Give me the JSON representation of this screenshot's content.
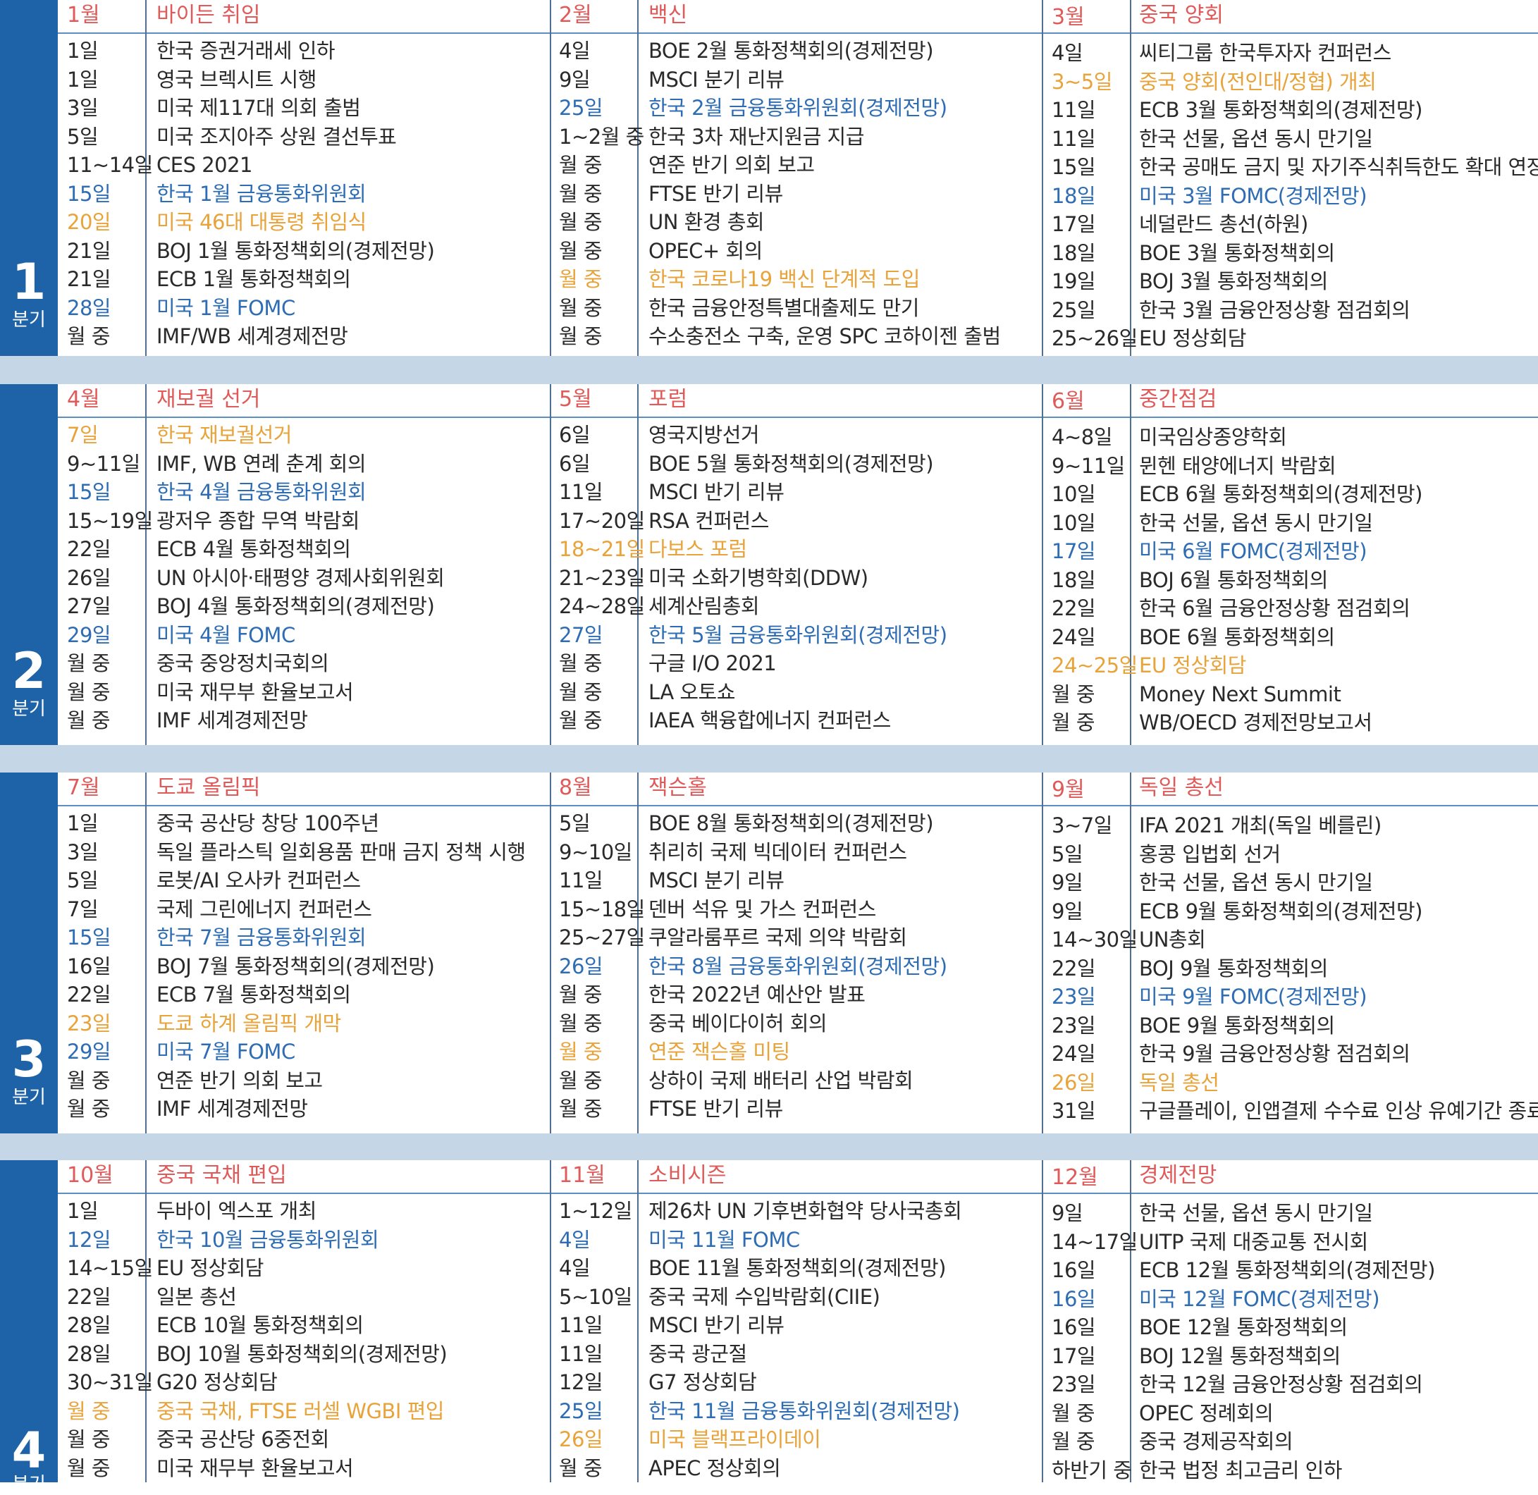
{
  "quarters": [
    {
      "number": "1",
      "label": "분기",
      "months": [
        {
          "month": "1월",
          "theme": "바이든 취임",
          "events": [
            {
              "day": "1일",
              "text": "한국 증권거래세 인하",
              "style": "normal"
            },
            {
              "day": "1일",
              "text": "영국 브렉시트 시행",
              "style": "normal"
            },
            {
              "day": "3일",
              "text": "미국 제117대 의회 출범",
              "style": "normal"
            },
            {
              "day": "5일",
              "text": "미국 조지아주 상원 결선투표",
              "style": "normal"
            },
            {
              "day": "11~14일",
              "text": "CES 2021",
              "style": "normal"
            },
            {
              "day": "15일",
              "text": "한국 1월 금융통화위원회",
              "style": "blue"
            },
            {
              "day": "20일",
              "text": "미국 46대 대통령 취임식",
              "style": "orange"
            },
            {
              "day": "21일",
              "text": "BOJ 1월 통화정책회의(경제전망)",
              "style": "normal"
            },
            {
              "day": "21일",
              "text": "ECB 1월 통화정책회의",
              "style": "normal"
            },
            {
              "day": "28일",
              "text": "미국 1월 FOMC",
              "style": "blue"
            },
            {
              "day": "월 중",
              "text": "IMF/WB 세계경제전망",
              "style": "normal"
            }
          ]
        },
        {
          "month": "2월",
          "theme": "백신",
          "events": [
            {
              "day": "4일",
              "text": "BOE 2월 통화정책회의(경제전망)",
              "style": "normal"
            },
            {
              "day": "9일",
              "text": "MSCI 분기 리뷰",
              "style": "normal"
            },
            {
              "day": "25일",
              "text": "한국 2월 금융통화위원회(경제전망)",
              "style": "blue"
            },
            {
              "day": "1~2월 중",
              "text": "한국 3차 재난지원금 지급",
              "style": "normal"
            },
            {
              "day": "월 중",
              "text": "연준 반기 의회 보고",
              "style": "normal"
            },
            {
              "day": "월 중",
              "text": "FTSE 반기 리뷰",
              "style": "normal"
            },
            {
              "day": "월 중",
              "text": "UN 환경 총회",
              "style": "normal"
            },
            {
              "day": "월 중",
              "text": "OPEC+ 회의",
              "style": "normal"
            },
            {
              "day": "월 중",
              "text": "한국 코로나19 백신 단계적 도입",
              "style": "orange"
            },
            {
              "day": "월 중",
              "text": "한국 금융안정특별대출제도 만기",
              "style": "normal"
            },
            {
              "day": "월 중",
              "text": "수소충전소 구축, 운영 SPC 코하이젠 출범",
              "style": "normal"
            }
          ]
        },
        {
          "month": "3월",
          "theme": "중국 양회",
          "events": [
            {
              "day": "4일",
              "text": "씨티그룹 한국투자자 컨퍼런스",
              "style": "normal"
            },
            {
              "day": "3~5일",
              "text": "중국 양회(전인대/정협) 개최",
              "style": "orange"
            },
            {
              "day": "11일",
              "text": "ECB 3월 통화정책회의(경제전망)",
              "style": "normal"
            },
            {
              "day": "11일",
              "text": "한국 선물, 옵션 동시 만기일",
              "style": "normal"
            },
            {
              "day": "15일",
              "text": "한국 공매도 금지 및 자기주식취득한도 확대 연장 종료",
              "style": "normal"
            },
            {
              "day": "18일",
              "text": "미국 3월 FOMC(경제전망)",
              "style": "blue"
            },
            {
              "day": "17일",
              "text": "네덜란드 총선(하원)",
              "style": "normal"
            },
            {
              "day": "18일",
              "text": "BOE 3월 통화정책회의",
              "style": "normal"
            },
            {
              "day": "19일",
              "text": "BOJ 3월 통화정책회의",
              "style": "normal"
            },
            {
              "day": "25일",
              "text": "한국 3월 금융안정상황 점검회의",
              "style": "normal"
            },
            {
              "day": "25~26일",
              "text": "EU 정상회담",
              "style": "normal"
            }
          ]
        }
      ]
    },
    {
      "number": "2",
      "label": "분기",
      "months": [
        {
          "month": "4월",
          "theme": "재보궐 선거",
          "events": [
            {
              "day": "7일",
              "text": "한국 재보궐선거",
              "style": "orange"
            },
            {
              "day": "9~11일",
              "text": "IMF, WB 연례 춘계 회의",
              "style": "normal"
            },
            {
              "day": "15일",
              "text": "한국 4월 금융통화위원회",
              "style": "blue"
            },
            {
              "day": "15~19일",
              "text": "광저우 종합 무역 박람회",
              "style": "normal"
            },
            {
              "day": "22일",
              "text": "ECB 4월 통화정책회의",
              "style": "normal"
            },
            {
              "day": "26일",
              "text": "UN 아시아·태평양 경제사회위원회",
              "style": "normal"
            },
            {
              "day": "27일",
              "text": "BOJ 4월 통화정책회의(경제전망)",
              "style": "normal"
            },
            {
              "day": "29일",
              "text": "미국 4월 FOMC",
              "style": "blue"
            },
            {
              "day": "월 중",
              "text": "중국 중앙정치국회의",
              "style": "normal"
            },
            {
              "day": "월 중",
              "text": "미국 재무부 환율보고서",
              "style": "normal"
            },
            {
              "day": "월 중",
              "text": "IMF 세계경제전망",
              "style": "normal"
            }
          ]
        },
        {
          "month": "5월",
          "theme": "포럼",
          "events": [
            {
              "day": "6일",
              "text": "영국지방선거",
              "style": "normal"
            },
            {
              "day": "6일",
              "text": "BOE 5월 통화정책회의(경제전망)",
              "style": "normal"
            },
            {
              "day": "11일",
              "text": "MSCI 반기 리뷰",
              "style": "normal"
            },
            {
              "day": "17~20일",
              "text": "RSA 컨퍼런스",
              "style": "normal"
            },
            {
              "day": "18~21일",
              "text": "다보스 포럼",
              "style": "orange"
            },
            {
              "day": "21~23일",
              "text": "미국 소화기병학회(DDW)",
              "style": "normal"
            },
            {
              "day": "24~28일",
              "text": "세계산림총회",
              "style": "normal"
            },
            {
              "day": "27일",
              "text": "한국 5월 금융통화위원회(경제전망)",
              "style": "blue"
            },
            {
              "day": "월 중",
              "text": "구글 I/O 2021",
              "style": "normal"
            },
            {
              "day": "월 중",
              "text": "LA 오토쇼",
              "style": "normal"
            },
            {
              "day": "월 중",
              "text": "IAEA 핵융합에너지 컨퍼런스",
              "style": "normal"
            }
          ]
        },
        {
          "month": "6월",
          "theme": "중간점검",
          "events": [
            {
              "day": "4~8일",
              "text": "미국임상종양학회",
              "style": "normal"
            },
            {
              "day": "9~11일",
              "text": "뮌헨 태양에너지 박람회",
              "style": "normal"
            },
            {
              "day": "10일",
              "text": "ECB 6월 통화정책회의(경제전망)",
              "style": "normal"
            },
            {
              "day": "10일",
              "text": "한국 선물, 옵션 동시 만기일",
              "style": "normal"
            },
            {
              "day": "17일",
              "text": "미국 6월 FOMC(경제전망)",
              "style": "blue"
            },
            {
              "day": "18일",
              "text": "BOJ 6월 통화정책회의",
              "style": "normal"
            },
            {
              "day": "22일",
              "text": "한국 6월 금융안정상황 점검회의",
              "style": "normal"
            },
            {
              "day": "24일",
              "text": "BOE 6월 통화정책회의",
              "style": "normal"
            },
            {
              "day": "24~25일",
              "text": "EU 정상회담",
              "style": "orange"
            },
            {
              "day": "월 중",
              "text": "Money Next Summit",
              "style": "normal"
            },
            {
              "day": "월 중",
              "text": "WB/OECD 경제전망보고서",
              "style": "normal"
            }
          ]
        }
      ]
    },
    {
      "number": "3",
      "label": "분기",
      "months": [
        {
          "month": "7월",
          "theme": "도쿄 올림픽",
          "events": [
            {
              "day": "1일",
              "text": "중국 공산당 창당 100주년",
              "style": "normal"
            },
            {
              "day": "3일",
              "text": "독일 플라스틱 일회용품 판매 금지 정책 시행",
              "style": "normal"
            },
            {
              "day": "5일",
              "text": "로봇/AI 오사카 컨퍼런스",
              "style": "normal"
            },
            {
              "day": "7일",
              "text": "국제 그린에너지 컨퍼런스",
              "style": "normal"
            },
            {
              "day": "15일",
              "text": "한국 7월 금융통화위원회",
              "style": "blue"
            },
            {
              "day": "16일",
              "text": "BOJ 7월 통화정책회의(경제전망)",
              "style": "normal"
            },
            {
              "day": "22일",
              "text": "ECB 7월 통화정책회의",
              "style": "normal"
            },
            {
              "day": "23일",
              "text": "도쿄 하계 올림픽 개막",
              "style": "orange"
            },
            {
              "day": "29일",
              "text": "미국 7월 FOMC",
              "style": "blue"
            },
            {
              "day": "월 중",
              "text": "연준 반기 의회 보고",
              "style": "normal"
            },
            {
              "day": "월 중",
              "text": "IMF 세계경제전망",
              "style": "normal"
            }
          ]
        },
        {
          "month": "8월",
          "theme": "잭슨홀",
          "events": [
            {
              "day": "5일",
              "text": "BOE 8월 통화정책회의(경제전망)",
              "style": "normal"
            },
            {
              "day": "9~10일",
              "text": "취리히 국제 빅데이터 컨퍼런스",
              "style": "normal"
            },
            {
              "day": "11일",
              "text": "MSCI 분기 리뷰",
              "style": "normal"
            },
            {
              "day": "15~18일",
              "text": "덴버 석유 및 가스 컨퍼런스",
              "style": "normal"
            },
            {
              "day": "25~27일",
              "text": "쿠알라룸푸르 국제 의약 박람회",
              "style": "normal"
            },
            {
              "day": "26일",
              "text": "한국 8월 금융통화위원회(경제전망)",
              "style": "blue"
            },
            {
              "day": "월 중",
              "text": "한국 2022년 예산안 발표",
              "style": "normal"
            },
            {
              "day": "월 중",
              "text": "중국 베이다이허 회의",
              "style": "normal"
            },
            {
              "day": "월 중",
              "text": "연준 잭슨홀 미팅",
              "style": "orange"
            },
            {
              "day": "월 중",
              "text": "상하이 국제 배터리 산업 박람회",
              "style": "normal"
            },
            {
              "day": "월 중",
              "text": "FTSE 반기 리뷰",
              "style": "normal"
            }
          ]
        },
        {
          "month": "9월",
          "theme": "독일 총선",
          "events": [
            {
              "day": "3~7일",
              "text": "IFA 2021 개최(독일 베를린)",
              "style": "normal"
            },
            {
              "day": "5일",
              "text": "홍콩 입법회 선거",
              "style": "normal"
            },
            {
              "day": "9일",
              "text": "한국 선물, 옵션 동시 만기일",
              "style": "normal"
            },
            {
              "day": "9일",
              "text": "ECB 9월 통화정책회의(경제전망)",
              "style": "normal"
            },
            {
              "day": "14~30일",
              "text": "UN총회",
              "style": "normal"
            },
            {
              "day": "22일",
              "text": "BOJ 9월 통화정책회의",
              "style": "normal"
            },
            {
              "day": "23일",
              "text": "미국 9월 FOMC(경제전망)",
              "style": "blue"
            },
            {
              "day": "23일",
              "text": "BOE 9월 통화정책회의",
              "style": "normal"
            },
            {
              "day": "24일",
              "text": "한국 9월 금융안정상황 점검회의",
              "style": "normal"
            },
            {
              "day": "26일",
              "text": "독일 총선",
              "style": "orange"
            },
            {
              "day": "31일",
              "text": "구글플레이, 인앱결제 수수료 인상 유예기간 종료",
              "style": "normal"
            }
          ]
        }
      ]
    },
    {
      "number": "4",
      "label": "분기",
      "months": [
        {
          "month": "10월",
          "theme": "중국 국채 편입",
          "events": [
            {
              "day": "1일",
              "text": "두바이 엑스포 개최",
              "style": "normal"
            },
            {
              "day": "12일",
              "text": "한국 10월 금융통화위원회",
              "style": "blue"
            },
            {
              "day": "14~15일",
              "text": "EU 정상회담",
              "style": "normal"
            },
            {
              "day": "22일",
              "text": "일본 총선",
              "style": "normal"
            },
            {
              "day": "28일",
              "text": "ECB 10월 통화정책회의",
              "style": "normal"
            },
            {
              "day": "28일",
              "text": "BOJ 10월 통화정책회의(경제전망)",
              "style": "normal"
            },
            {
              "day": "30~31일",
              "text": "G20 정상회담",
              "style": "normal"
            },
            {
              "day": "월 중",
              "text": "중국 국채, FTSE 러셀 WGBI 편입",
              "style": "orange"
            },
            {
              "day": "월 중",
              "text": "중국 공산당 6중전회",
              "style": "normal"
            },
            {
              "day": "월 중",
              "text": "미국 재무부 환율보고서",
              "style": "normal"
            }
          ]
        },
        {
          "month": "11월",
          "theme": "소비시즌",
          "events": [
            {
              "day": "1~12일",
              "text": "제26차 UN 기후변화협약 당사국총회",
              "style": "normal"
            },
            {
              "day": "4일",
              "text": "미국 11월 FOMC",
              "style": "blue"
            },
            {
              "day": "4일",
              "text": "BOE 11월 통화정책회의(경제전망)",
              "style": "normal"
            },
            {
              "day": "5~10일",
              "text": "중국 국제 수입박람회(CIIE)",
              "style": "normal"
            },
            {
              "day": "11일",
              "text": "MSCI 반기 리뷰",
              "style": "normal"
            },
            {
              "day": "11일",
              "text": "중국 광군절",
              "style": "normal"
            },
            {
              "day": "12일",
              "text": "G7 정상회담",
              "style": "normal"
            },
            {
              "day": "25일",
              "text": "한국 11월 금융통화위원회(경제전망)",
              "style": "blue"
            },
            {
              "day": "26일",
              "text": "미국 블랙프라이데이",
              "style": "orange"
            },
            {
              "day": "월 중",
              "text": "APEC 정상회의",
              "style": "normal"
            }
          ]
        },
        {
          "month": "12월",
          "theme": "경제전망",
          "events": [
            {
              "day": "9일",
              "text": "한국 선물, 옵션 동시 만기일",
              "style": "normal"
            },
            {
              "day": "14~17일",
              "text": "UITP 국제 대중교통 전시회",
              "style": "normal"
            },
            {
              "day": "16일",
              "text": "ECB 12월 통화정책회의(경제전망)",
              "style": "normal"
            },
            {
              "day": "16일",
              "text": "미국 12월 FOMC(경제전망)",
              "style": "blue"
            },
            {
              "day": "16일",
              "text": "BOE 12월 통화정책회의",
              "style": "normal"
            },
            {
              "day": "17일",
              "text": "BOJ 12월 통화정책회의",
              "style": "normal"
            },
            {
              "day": "23일",
              "text": "한국 12월 금융안정상황 점검회의",
              "style": "normal"
            },
            {
              "day": "월 중",
              "text": "OPEC 정례회의",
              "style": "normal"
            },
            {
              "day": "월 중",
              "text": "중국 경제공작회의",
              "style": "normal"
            },
            {
              "day": "하반기 중",
              "text": "한국 법정 최고금리 인하",
              "style": "normal"
            }
          ]
        }
      ]
    }
  ],
  "colors": {
    "quarter_bar": "#1e63a8",
    "separator_band": "#c5d7e6",
    "header_text": "#e05a5a",
    "blue_event": "#2e6db4",
    "orange_event": "#e8a33a",
    "normal_text": "#2a2a2a"
  }
}
